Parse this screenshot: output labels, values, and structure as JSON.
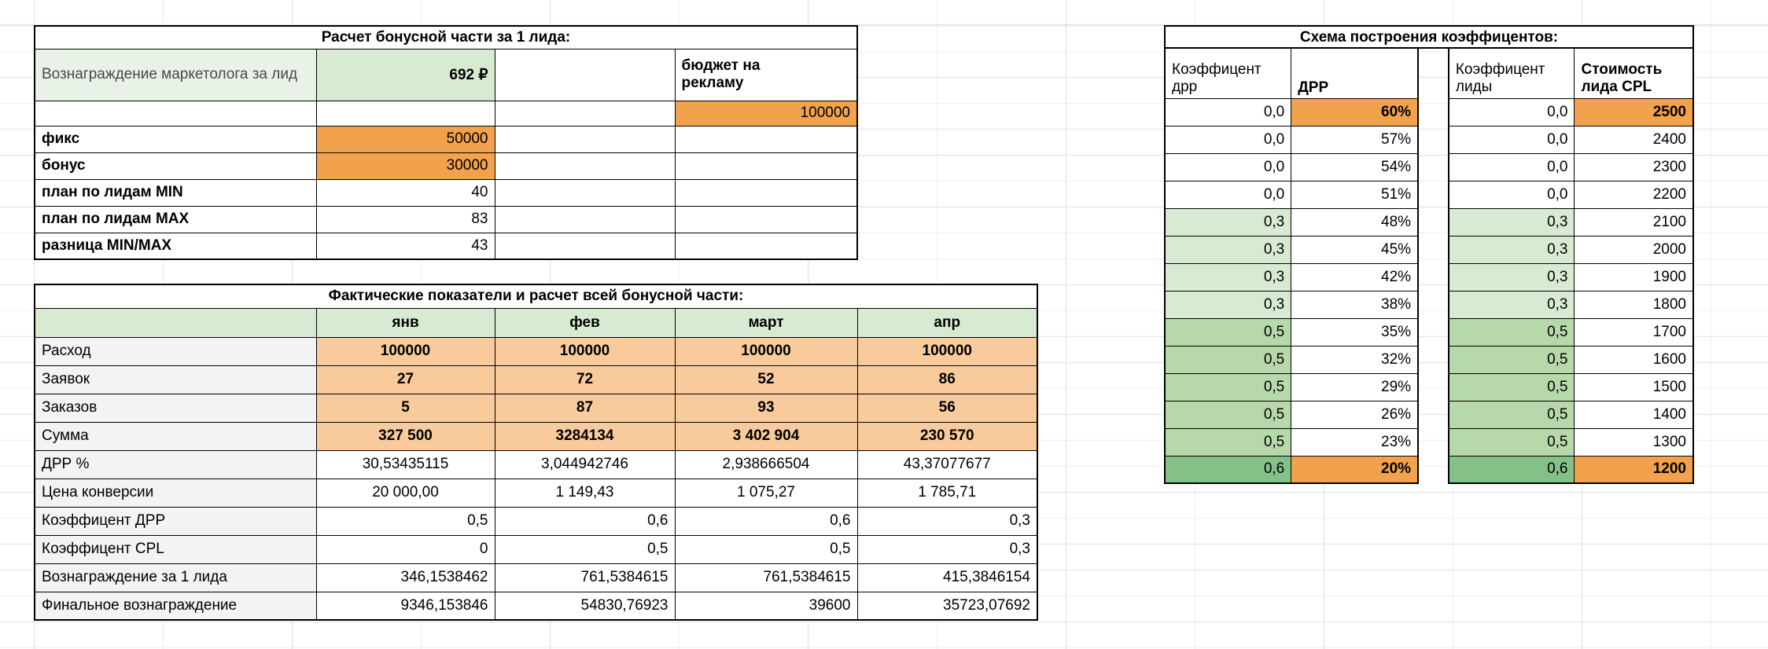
{
  "colors": {
    "accent_green_header": "#d9ead3",
    "accent_green_label": "#e9f2e6",
    "accent_green_light": "#d9ead3",
    "accent_green_mid": "#b7d8aa",
    "accent_green_dark": "#85c089",
    "accent_orange_strong": "#f2a24c",
    "accent_orange_light": "#f9cb9c",
    "label_gray": "#f3f3f3",
    "grid_line": "#e6e6e6"
  },
  "bonus_table": {
    "title": "Расчет бонусной части за 1 лида:",
    "reward_label": "Вознаграждение маркетолога за лид",
    "reward_value": "692 ₽",
    "budget_label": "бюджет на рекламу",
    "budget_value": "100000",
    "rows": [
      {
        "label": "фикс",
        "value": "50000",
        "orange": true
      },
      {
        "label": "бонус",
        "value": "30000",
        "orange": true
      },
      {
        "label": "план по лидам MIN",
        "value": "40",
        "orange": false
      },
      {
        "label": "план по лидам MAX",
        "value": "83",
        "orange": false
      },
      {
        "label": "разница MIN/MAX",
        "value": "43",
        "orange": false
      }
    ]
  },
  "actuals_table": {
    "title": "Фактические показатели и расчет всей бонусной части:",
    "months": [
      "янв",
      "фев",
      "март",
      "апр"
    ],
    "rows": [
      {
        "label": "Расход",
        "values": [
          "100000",
          "100000",
          "100000",
          "100000"
        ],
        "style": "orange"
      },
      {
        "label": "Заявок",
        "values": [
          "27",
          "72",
          "52",
          "86"
        ],
        "style": "orange"
      },
      {
        "label": "Заказов",
        "values": [
          "5",
          "87",
          "93",
          "56"
        ],
        "style": "orange"
      },
      {
        "label": "Сумма",
        "values": [
          "327 500",
          "3284134",
          "3 402 904",
          "230 570"
        ],
        "style": "orange"
      },
      {
        "label": "ДРР %",
        "values": [
          "30,53435115",
          "3,044942746",
          "2,938666504",
          "43,37077677"
        ],
        "style": "center"
      },
      {
        "label": "Цена конверсии",
        "values": [
          "20 000,00",
          "1 149,43",
          "1 075,27",
          "1 785,71"
        ],
        "style": "center"
      },
      {
        "label": "Коэффицент ДРР",
        "values": [
          "0,5",
          "0,6",
          "0,6",
          "0,3"
        ],
        "style": "right"
      },
      {
        "label": "Коэффицент CPL",
        "values": [
          "0",
          "0,5",
          "0,5",
          "0,3"
        ],
        "style": "right"
      },
      {
        "label": "Вознаграждение за 1 лида",
        "values": [
          "346,1538462",
          "761,5384615",
          "761,5384615",
          "415,3846154"
        ],
        "style": "right"
      },
      {
        "label": "Финальное вознаграждение",
        "values": [
          "9346,153846",
          "54830,76923",
          "39600",
          "35723,07692"
        ],
        "style": "right"
      }
    ]
  },
  "coeff_table": {
    "title": "Схема построения коэффицентов:",
    "headers": {
      "drr_coeff": "Коэффицент дрр",
      "drr": "ДРР",
      "lead_coeff": "Коэффицент лиды",
      "cpl": "Стоимость лида CPL"
    },
    "rows": [
      {
        "drr_coeff": "0,0",
        "drr": "60%",
        "lead_coeff": "0,0",
        "cpl": "2500",
        "tier": "t0",
        "highlight": true
      },
      {
        "drr_coeff": "0,0",
        "drr": "57%",
        "lead_coeff": "0,0",
        "cpl": "2400",
        "tier": "t0",
        "highlight": false
      },
      {
        "drr_coeff": "0,0",
        "drr": "54%",
        "lead_coeff": "0,0",
        "cpl": "2300",
        "tier": "t0",
        "highlight": false
      },
      {
        "drr_coeff": "0,0",
        "drr": "51%",
        "lead_coeff": "0,0",
        "cpl": "2200",
        "tier": "t0",
        "highlight": false
      },
      {
        "drr_coeff": "0,3",
        "drr": "48%",
        "lead_coeff": "0,3",
        "cpl": "2100",
        "tier": "t3",
        "highlight": false
      },
      {
        "drr_coeff": "0,3",
        "drr": "45%",
        "lead_coeff": "0,3",
        "cpl": "2000",
        "tier": "t3",
        "highlight": false
      },
      {
        "drr_coeff": "0,3",
        "drr": "42%",
        "lead_coeff": "0,3",
        "cpl": "1900",
        "tier": "t3",
        "highlight": false
      },
      {
        "drr_coeff": "0,3",
        "drr": "38%",
        "lead_coeff": "0,3",
        "cpl": "1800",
        "tier": "t3",
        "highlight": false
      },
      {
        "drr_coeff": "0,5",
        "drr": "35%",
        "lead_coeff": "0,5",
        "cpl": "1700",
        "tier": "t5",
        "highlight": false
      },
      {
        "drr_coeff": "0,5",
        "drr": "32%",
        "lead_coeff": "0,5",
        "cpl": "1600",
        "tier": "t5",
        "highlight": false
      },
      {
        "drr_coeff": "0,5",
        "drr": "29%",
        "lead_coeff": "0,5",
        "cpl": "1500",
        "tier": "t5",
        "highlight": false
      },
      {
        "drr_coeff": "0,5",
        "drr": "26%",
        "lead_coeff": "0,5",
        "cpl": "1400",
        "tier": "t5",
        "highlight": false
      },
      {
        "drr_coeff": "0,5",
        "drr": "23%",
        "lead_coeff": "0,5",
        "cpl": "1300",
        "tier": "t5",
        "highlight": false
      },
      {
        "drr_coeff": "0,6",
        "drr": "20%",
        "lead_coeff": "0,6",
        "cpl": "1200",
        "tier": "t6",
        "highlight": true
      }
    ]
  }
}
